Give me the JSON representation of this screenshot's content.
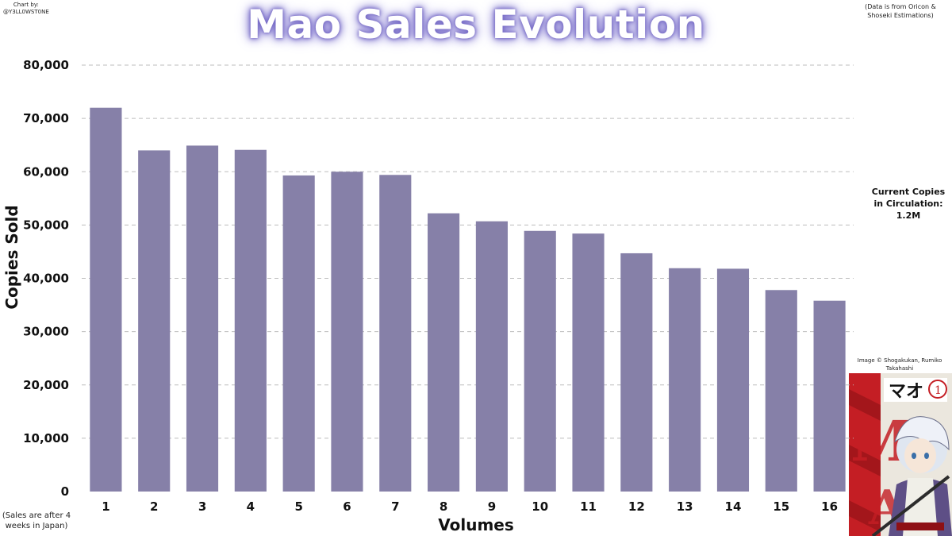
{
  "credit": {
    "line1": "Chart by:",
    "line2": "@Y3LL0WST0NE"
  },
  "source_note": "(Data is from Oricon & Shoseki Estimations)",
  "circulation": {
    "line1": "Current Copies",
    "line2": "in Circulation:",
    "line3": "1.2M"
  },
  "image_credit": "Image © Shogakukan, Rumiko Takahashi",
  "footnote": "(Sales are after 4 weeks in Japan)",
  "cover_icon": "manga-cover-icon",
  "colors": {
    "bar": "#8680a8",
    "grid": "#bdbdbd",
    "title_glow": "#7d72c8"
  },
  "chart_data": {
    "type": "bar",
    "title": "Mao Sales Evolution",
    "xlabel": "Volumes",
    "ylabel": "Copies Sold",
    "categories": [
      "1",
      "2",
      "3",
      "4",
      "5",
      "6",
      "7",
      "8",
      "9",
      "10",
      "11",
      "12",
      "13",
      "14",
      "15",
      "16"
    ],
    "values": [
      72000,
      64000,
      64900,
      64100,
      59300,
      60000,
      59400,
      52200,
      50700,
      48900,
      48400,
      44700,
      41900,
      41800,
      37800,
      35800
    ],
    "ylim": [
      0,
      80000
    ],
    "yticks": [
      "0",
      "10,000",
      "20,000",
      "30,000",
      "40,000",
      "50,000",
      "60,000",
      "70,000",
      "80,000"
    ],
    "grid": true,
    "legend": "none"
  }
}
